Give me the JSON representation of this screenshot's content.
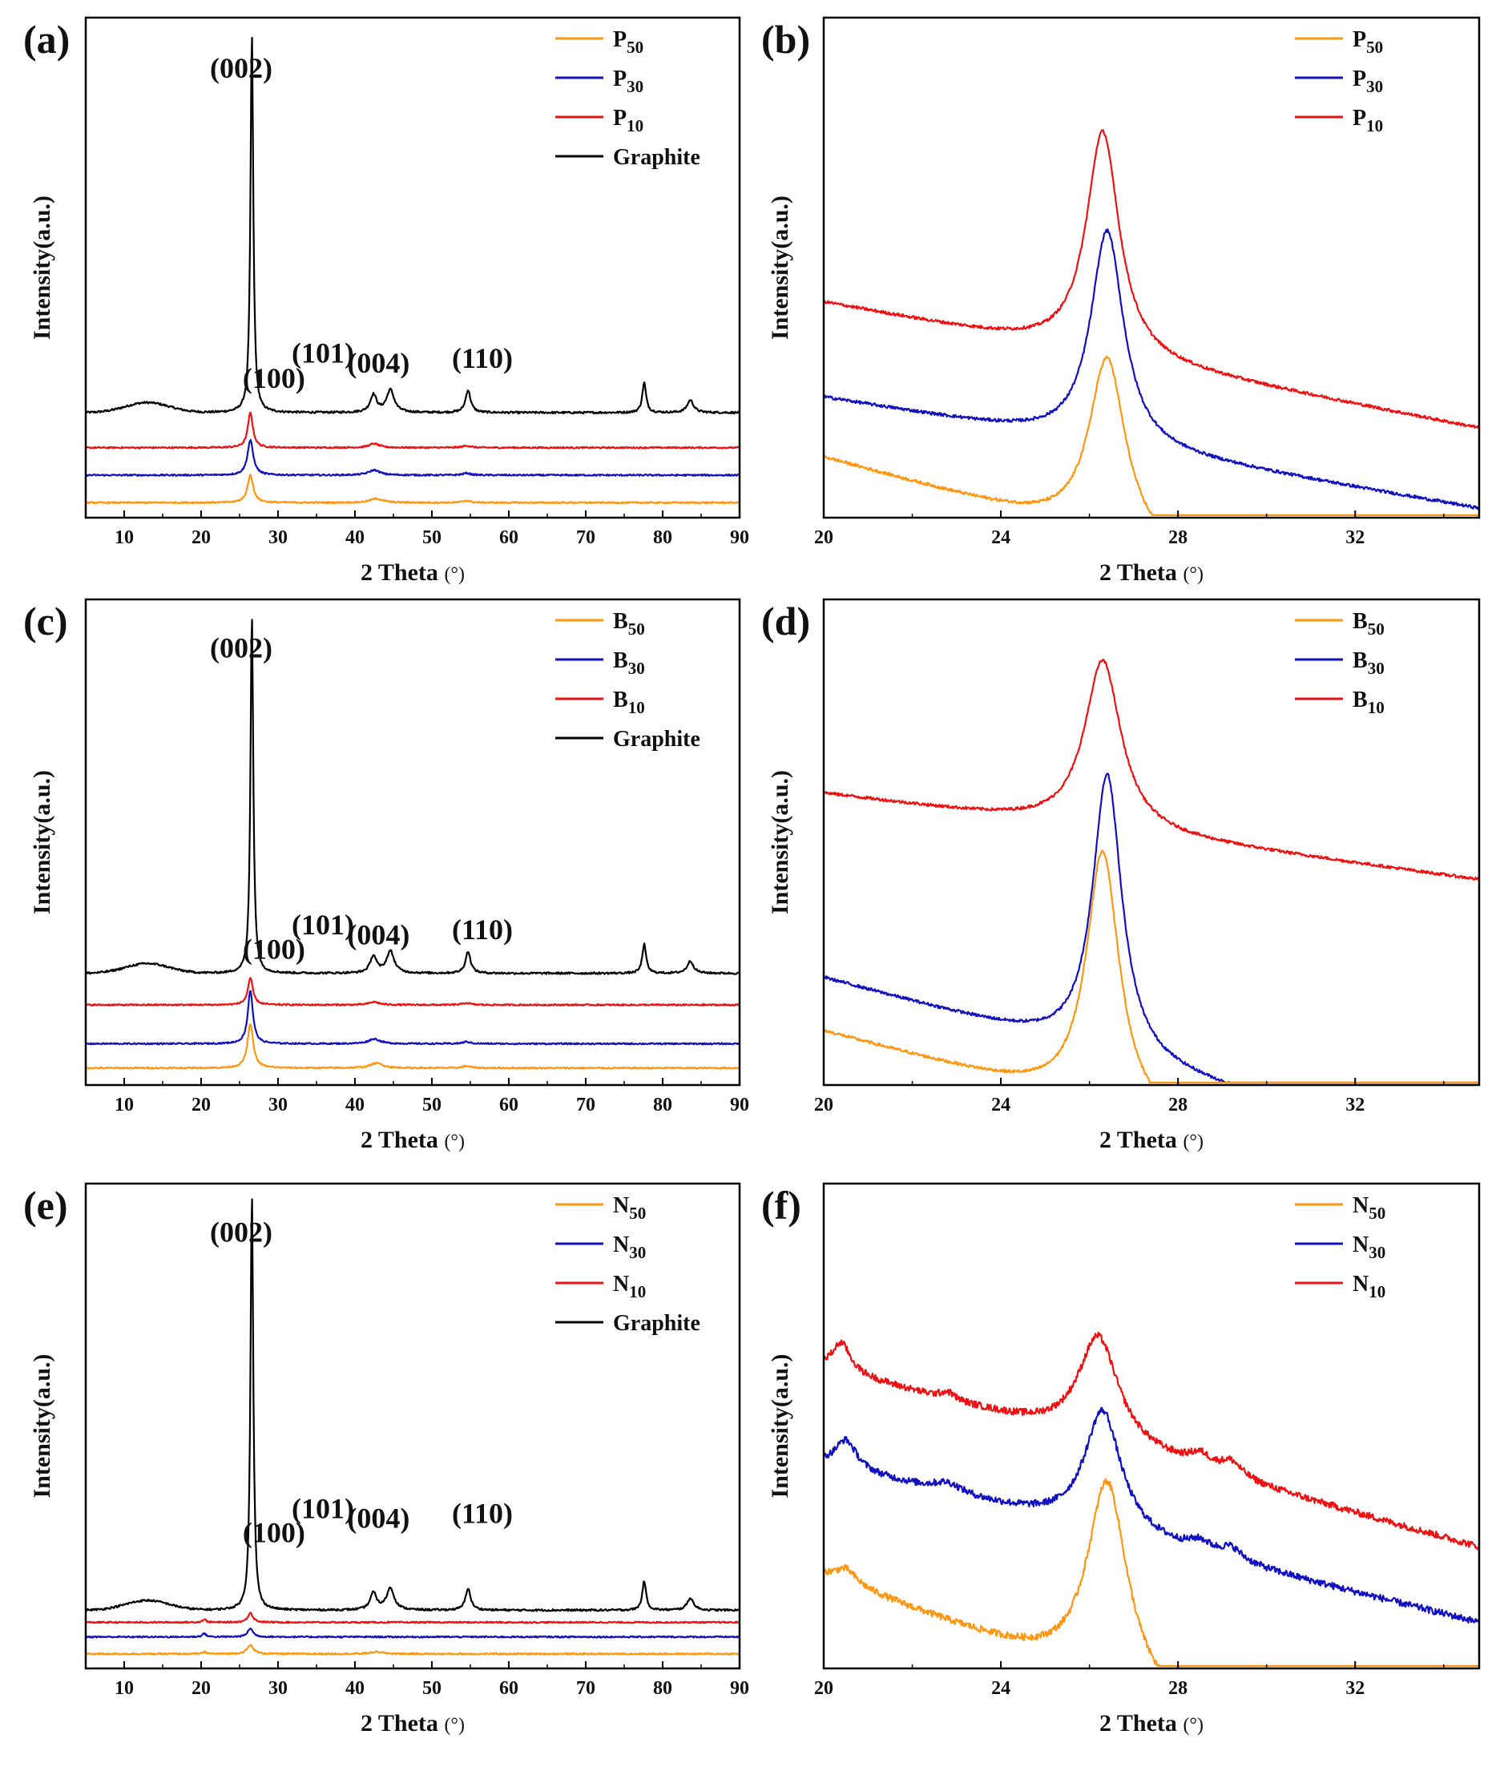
{
  "figure": {
    "colors": {
      "black": "#000000",
      "red": "#ee1111",
      "blue": "#1010c0",
      "orange": "#ff9611"
    },
    "xlabel": "2 Theta",
    "xunit": "(°)",
    "ylabel": "Intensity(a.u.)",
    "peak_labels": [
      "(002)",
      "(100)",
      "(101)",
      "(004)",
      "(110)"
    ]
  },
  "chart_data": [
    {
      "id": "a",
      "panel_label": "(a)",
      "type": "line",
      "title": "",
      "xlabel": "2 Theta(°)",
      "ylabel": "Intensity(a.u.)",
      "xlim": [
        5,
        90
      ],
      "xticks": [
        10,
        20,
        30,
        40,
        50,
        60,
        70,
        80,
        90
      ],
      "yticks": "none",
      "grid": false,
      "legend_position": "top-right",
      "legend": [
        {
          "base": "P",
          "sub": "50",
          "color": "#ff9611"
        },
        {
          "base": "P",
          "sub": "30",
          "color": "#1010c0"
        },
        {
          "base": "P",
          "sub": "10",
          "color": "#ee1111"
        },
        {
          "base": "Graphite",
          "sub": "",
          "color": "#000000"
        }
      ],
      "annotations": [
        "(002)",
        "(100)",
        "(101)",
        "(004)",
        "(110)"
      ],
      "series": [
        {
          "name": "Graphite",
          "color": "#000000",
          "baseline": 0.21,
          "offset": 0.21,
          "slope": 0.0,
          "hump": {
            "center": 13,
            "height": 0.02,
            "width": 4
          },
          "peaks": [
            {
              "center": 26.6,
              "height": 0.76,
              "width": 0.22
            },
            {
              "center": 42.4,
              "height": 0.035,
              "width": 0.5
            },
            {
              "center": 44.6,
              "height": 0.045,
              "width": 0.6
            },
            {
              "center": 54.7,
              "height": 0.045,
              "width": 0.4
            },
            {
              "center": 77.6,
              "height": 0.06,
              "width": 0.3
            },
            {
              "center": 83.6,
              "height": 0.025,
              "width": 0.5
            }
          ],
          "noise": 0.002
        },
        {
          "name": "P10",
          "color": "#ee1111",
          "baseline": 0.14,
          "offset": 0.14,
          "slope": 0.0,
          "peaks": [
            {
              "center": 26.4,
              "height": 0.07,
              "width": 0.4
            },
            {
              "center": 42.5,
              "height": 0.008,
              "width": 0.8
            },
            {
              "center": 54.5,
              "height": 0.004,
              "width": 0.6
            }
          ],
          "noise": 0.0015
        },
        {
          "name": "P30",
          "color": "#1010c0",
          "baseline": 0.085,
          "offset": 0.085,
          "slope": 0.0,
          "peaks": [
            {
              "center": 26.4,
              "height": 0.07,
              "width": 0.45
            },
            {
              "center": 42.5,
              "height": 0.01,
              "width": 0.9
            },
            {
              "center": 54.5,
              "height": 0.004,
              "width": 0.6
            }
          ],
          "noise": 0.0015
        },
        {
          "name": "P50",
          "color": "#ff9611",
          "baseline": 0.03,
          "offset": 0.03,
          "slope": 0.0,
          "peaks": [
            {
              "center": 26.4,
              "height": 0.055,
              "width": 0.45
            },
            {
              "center": 42.8,
              "height": 0.008,
              "width": 1.0
            },
            {
              "center": 54.5,
              "height": 0.004,
              "width": 0.6
            }
          ],
          "noise": 0.0015
        }
      ]
    },
    {
      "id": "b",
      "panel_label": "(b)",
      "type": "line",
      "title": "",
      "xlabel": "2 Theta(°)",
      "ylabel": "Intensity(a.u.)",
      "xlim": [
        20,
        34.8
      ],
      "xticks": [
        20,
        24,
        28,
        32
      ],
      "yticks": "none",
      "grid": false,
      "legend_position": "top-right",
      "legend": [
        {
          "base": "P",
          "sub": "50",
          "color": "#ff9611"
        },
        {
          "base": "P",
          "sub": "30",
          "color": "#1010c0"
        },
        {
          "base": "P",
          "sub": "10",
          "color": "#ee1111"
        }
      ],
      "annotations": [],
      "series": [
        {
          "name": "P10",
          "color": "#ee1111",
          "baseline": 0.43,
          "offset": 0.43,
          "slope": -0.0017,
          "peaks": [
            {
              "center": 26.3,
              "height": 0.45,
              "width": 0.45
            }
          ],
          "noise": 0.003
        },
        {
          "name": "P30",
          "color": "#1010c0",
          "baseline": 0.24,
          "offset": 0.24,
          "slope": -0.0015,
          "peaks": [
            {
              "center": 26.4,
              "height": 0.43,
              "width": 0.45
            }
          ],
          "noise": 0.003
        },
        {
          "name": "P50",
          "color": "#ff9611",
          "baseline": 0.12,
          "offset": 0.12,
          "slope": -0.0025,
          "peaks": [
            {
              "center": 26.4,
              "height": 0.36,
              "width": 0.5
            }
          ],
          "noise": 0.003
        }
      ]
    },
    {
      "id": "c",
      "panel_label": "(c)",
      "type": "line",
      "title": "",
      "xlabel": "2 Theta(°)",
      "ylabel": "Intensity(a.u.)",
      "xlim": [
        5,
        90
      ],
      "xticks": [
        10,
        20,
        30,
        40,
        50,
        60,
        70,
        80,
        90
      ],
      "yticks": "none",
      "grid": false,
      "legend_position": "top-right",
      "legend": [
        {
          "base": "B",
          "sub": "50",
          "color": "#ff9611"
        },
        {
          "base": "B",
          "sub": "30",
          "color": "#1010c0"
        },
        {
          "base": "B",
          "sub": "10",
          "color": "#ee1111"
        },
        {
          "base": "Graphite",
          "sub": "",
          "color": "#000000"
        }
      ],
      "annotations": [
        "(002)",
        "(100)",
        "(101)",
        "(004)",
        "(110)"
      ],
      "series": [
        {
          "name": "Graphite",
          "color": "#000000",
          "baseline": 0.23,
          "offset": 0.23,
          "slope": 0.0,
          "hump": {
            "center": 13,
            "height": 0.02,
            "width": 4
          },
          "peaks": [
            {
              "center": 26.6,
              "height": 0.74,
              "width": 0.22
            },
            {
              "center": 42.4,
              "height": 0.035,
              "width": 0.5
            },
            {
              "center": 44.6,
              "height": 0.045,
              "width": 0.6
            },
            {
              "center": 54.7,
              "height": 0.045,
              "width": 0.4
            },
            {
              "center": 77.6,
              "height": 0.06,
              "width": 0.3
            },
            {
              "center": 83.6,
              "height": 0.025,
              "width": 0.5
            }
          ],
          "noise": 0.002
        },
        {
          "name": "B10",
          "color": "#ee1111",
          "baseline": 0.165,
          "offset": 0.165,
          "slope": 0.0,
          "peaks": [
            {
              "center": 26.4,
              "height": 0.055,
              "width": 0.4
            },
            {
              "center": 42.5,
              "height": 0.006,
              "width": 0.8
            },
            {
              "center": 54.5,
              "height": 0.004,
              "width": 0.6
            }
          ],
          "noise": 0.0015
        },
        {
          "name": "B30",
          "color": "#1010c0",
          "baseline": 0.085,
          "offset": 0.085,
          "slope": 0.0,
          "peaks": [
            {
              "center": 26.4,
              "height": 0.11,
              "width": 0.4
            },
            {
              "center": 42.5,
              "height": 0.01,
              "width": 0.9
            },
            {
              "center": 54.5,
              "height": 0.004,
              "width": 0.6
            }
          ],
          "noise": 0.0015
        },
        {
          "name": "B50",
          "color": "#ff9611",
          "baseline": 0.035,
          "offset": 0.035,
          "slope": 0.0,
          "peaks": [
            {
              "center": 26.4,
              "height": 0.09,
              "width": 0.45
            },
            {
              "center": 42.8,
              "height": 0.01,
              "width": 1.0
            },
            {
              "center": 54.5,
              "height": 0.004,
              "width": 0.6
            }
          ],
          "noise": 0.0015
        }
      ]
    },
    {
      "id": "d",
      "panel_label": "(d)",
      "type": "line",
      "title": "",
      "xlabel": "2 Theta(°)",
      "ylabel": "Intensity(a.u.)",
      "xlim": [
        20,
        34.8
      ],
      "xticks": [
        20,
        24,
        28,
        32
      ],
      "yticks": "none",
      "grid": false,
      "legend_position": "top-right",
      "legend": [
        {
          "base": "B",
          "sub": "50",
          "color": "#ff9611"
        },
        {
          "base": "B",
          "sub": "30",
          "color": "#1010c0"
        },
        {
          "base": "B",
          "sub": "10",
          "color": "#ee1111"
        }
      ],
      "annotations": [],
      "series": [
        {
          "name": "B10",
          "color": "#ee1111",
          "baseline": 0.6,
          "offset": 0.6,
          "slope": -0.0012,
          "peaks": [
            {
              "center": 26.3,
              "height": 0.35,
              "width": 0.5
            }
          ],
          "noise": 0.003
        },
        {
          "name": "B30",
          "color": "#1010c0",
          "baseline": 0.22,
          "offset": 0.22,
          "slope": -0.0025,
          "peaks": [
            {
              "center": 26.4,
              "height": 0.58,
              "width": 0.4
            }
          ],
          "noise": 0.003
        },
        {
          "name": "B50",
          "color": "#ff9611",
          "baseline": 0.11,
          "offset": 0.11,
          "slope": -0.0025,
          "peaks": [
            {
              "center": 26.3,
              "height": 0.53,
              "width": 0.45
            }
          ],
          "noise": 0.003
        }
      ]
    },
    {
      "id": "e",
      "panel_label": "(e)",
      "type": "line",
      "title": "",
      "xlabel": "2 Theta(°)",
      "ylabel": "Intensity(a.u.)",
      "xlim": [
        5,
        90
      ],
      "xticks": [
        10,
        20,
        30,
        40,
        50,
        60,
        70,
        80,
        90
      ],
      "yticks": "none",
      "grid": false,
      "legend_position": "top-right",
      "legend": [
        {
          "base": "N",
          "sub": "50",
          "color": "#ff9611"
        },
        {
          "base": "N",
          "sub": "30",
          "color": "#1010c0"
        },
        {
          "base": "N",
          "sub": "10",
          "color": "#ee1111"
        },
        {
          "base": "Graphite",
          "sub": "",
          "color": "#000000"
        }
      ],
      "annotations": [
        "(002)",
        "(100)",
        "(101)",
        "(004)",
        "(110)"
      ],
      "series": [
        {
          "name": "Graphite",
          "color": "#000000",
          "baseline": 0.12,
          "offset": 0.12,
          "slope": 0.0,
          "hump": {
            "center": 13,
            "height": 0.02,
            "width": 4
          },
          "peaks": [
            {
              "center": 26.6,
              "height": 0.86,
              "width": 0.22
            },
            {
              "center": 42.4,
              "height": 0.035,
              "width": 0.5
            },
            {
              "center": 44.6,
              "height": 0.045,
              "width": 0.6
            },
            {
              "center": 54.7,
              "height": 0.045,
              "width": 0.4
            },
            {
              "center": 77.6,
              "height": 0.06,
              "width": 0.3
            },
            {
              "center": 83.6,
              "height": 0.025,
              "width": 0.5
            }
          ],
          "noise": 0.002
        },
        {
          "name": "N10",
          "color": "#ee1111",
          "baseline": 0.095,
          "offset": 0.095,
          "slope": 0.0,
          "peaks": [
            {
              "center": 20.4,
              "height": 0.006,
              "width": 0.3
            },
            {
              "center": 26.4,
              "height": 0.02,
              "width": 0.4
            }
          ],
          "noise": 0.0015
        },
        {
          "name": "N30",
          "color": "#1010c0",
          "baseline": 0.065,
          "offset": 0.065,
          "slope": 0.0,
          "peaks": [
            {
              "center": 20.4,
              "height": 0.007,
              "width": 0.3
            },
            {
              "center": 26.4,
              "height": 0.018,
              "width": 0.4
            }
          ],
          "noise": 0.0015
        },
        {
          "name": "N50",
          "color": "#ff9611",
          "baseline": 0.03,
          "offset": 0.03,
          "slope": 0.0,
          "peaks": [
            {
              "center": 20.5,
              "height": 0.004,
              "width": 0.3
            },
            {
              "center": 26.4,
              "height": 0.018,
              "width": 0.5
            },
            {
              "center": 42.8,
              "height": 0.004,
              "width": 1.0
            }
          ],
          "noise": 0.0015
        }
      ]
    },
    {
      "id": "f",
      "panel_label": "(f)",
      "type": "line",
      "title": "",
      "xlabel": "2 Theta(°)",
      "ylabel": "Intensity(a.u.)",
      "xlim": [
        20,
        34.8
      ],
      "xticks": [
        20,
        24,
        28,
        32
      ],
      "yticks": "none",
      "grid": false,
      "legend_position": "top-right",
      "legend": [
        {
          "base": "N",
          "sub": "50",
          "color": "#ff9611"
        },
        {
          "base": "N",
          "sub": "30",
          "color": "#1010c0"
        },
        {
          "base": "N",
          "sub": "10",
          "color": "#ee1111"
        }
      ],
      "annotations": [],
      "series": [
        {
          "name": "N10",
          "color": "#ee1111",
          "baseline": 0.62,
          "offset": 0.62,
          "slope": -0.0025,
          "peaks": [
            {
              "center": 20.4,
              "height": 0.06,
              "width": 0.25
            },
            {
              "center": 22.8,
              "height": 0.015,
              "width": 0.2
            },
            {
              "center": 26.2,
              "height": 0.22,
              "width": 0.55
            },
            {
              "center": 28.5,
              "height": 0.025,
              "width": 0.3
            },
            {
              "center": 29.2,
              "height": 0.03,
              "width": 0.3
            }
          ],
          "noise": 0.007
        },
        {
          "name": "N30",
          "color": "#1010c0",
          "baseline": 0.42,
          "offset": 0.42,
          "slope": -0.0022,
          "peaks": [
            {
              "center": 20.5,
              "height": 0.06,
              "width": 0.3
            },
            {
              "center": 22.8,
              "height": 0.02,
              "width": 0.4
            },
            {
              "center": 26.3,
              "height": 0.25,
              "width": 0.5
            },
            {
              "center": 28.5,
              "height": 0.02,
              "width": 0.3
            },
            {
              "center": 29.2,
              "height": 0.025,
              "width": 0.3
            }
          ],
          "noise": 0.007
        },
        {
          "name": "N50",
          "color": "#ff9611",
          "baseline": 0.19,
          "offset": 0.19,
          "slope": -0.0035,
          "peaks": [
            {
              "center": 20.5,
              "height": 0.03,
              "width": 0.3
            },
            {
              "center": 26.4,
              "height": 0.42,
              "width": 0.55
            }
          ],
          "noise": 0.007
        }
      ]
    }
  ]
}
